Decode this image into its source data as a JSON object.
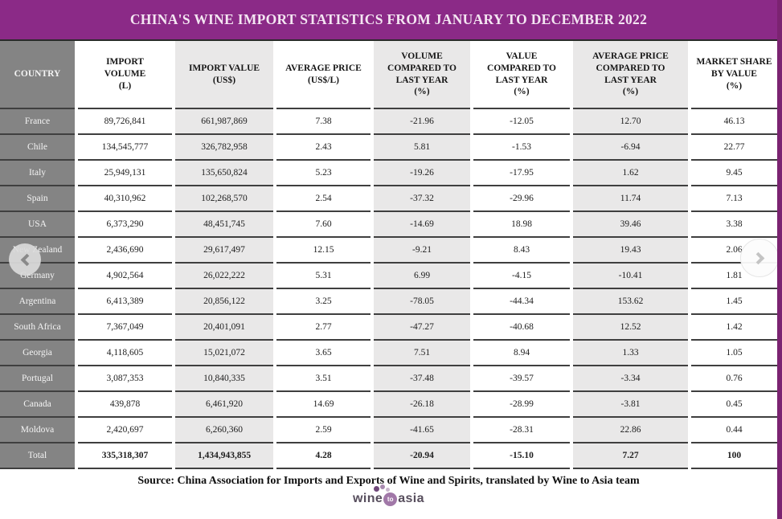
{
  "title": "CHINA'S WINE IMPORT STATISTICS FROM JANUARY TO DECEMBER 2022",
  "footer": {
    "source": "Source: China Association for Imports and Exports of Wine and Spirits, translated by Wine to Asia team"
  },
  "logo": {
    "word1": "wine",
    "word2": "to",
    "word3": "asia"
  },
  "carousel": {
    "prev": "previous-slide",
    "next": "next-slide"
  },
  "colors": {
    "accent": "#8b2a87",
    "strip": "#7b2371",
    "country_cell": "#848484",
    "shaded_column": "#e9e8e8",
    "row_line": "#3f3f3f",
    "logo_purple": "#a178a8",
    "logo_text": "#574e5d"
  },
  "chart_data": {
    "type": "table",
    "title": "CHINA'S WINE IMPORT STATISTICS FROM JANUARY TO DECEMBER 2022",
    "columns": [
      "COUNTRY",
      "IMPORT\nVOLUME\n(L)",
      "IMPORT VALUE\n(US$)",
      "AVERAGE PRICE\n(US$/L)",
      "VOLUME\nCOMPARED TO\nLAST YEAR\n(%)",
      "VALUE\nCOMPARED TO\nLAST YEAR\n(%)",
      "AVERAGE PRICE\nCOMPARED TO\nLAST YEAR\n(%)",
      "MARKET SHARE\nBY VALUE\n(%)"
    ],
    "rows": [
      {
        "country": "France",
        "values": [
          "89,726,841",
          "661,987,869",
          "7.38",
          "-21.96",
          "-12.05",
          "12.70",
          "46.13"
        ],
        "emphasis": false
      },
      {
        "country": "Chile",
        "values": [
          "134,545,777",
          "326,782,958",
          "2.43",
          "5.81",
          "-1.53",
          "-6.94",
          "22.77"
        ],
        "emphasis": false
      },
      {
        "country": "Italy",
        "values": [
          "25,949,131",
          "135,650,824",
          "5.23",
          "-19.26",
          "-17.95",
          "1.62",
          "9.45"
        ],
        "emphasis": false
      },
      {
        "country": "Spain",
        "values": [
          "40,310,962",
          "102,268,570",
          "2.54",
          "-37.32",
          "-29.96",
          "11.74",
          "7.13"
        ],
        "emphasis": false
      },
      {
        "country": "USA",
        "values": [
          "6,373,290",
          "48,451,745",
          "7.60",
          "-14.69",
          "18.98",
          "39.46",
          "3.38"
        ],
        "emphasis": false
      },
      {
        "country": "New Zealand",
        "values": [
          "2,436,690",
          "29,617,497",
          "12.15",
          "-9.21",
          "8.43",
          "19.43",
          "2.06"
        ],
        "emphasis": false
      },
      {
        "country": "Germany",
        "values": [
          "4,902,564",
          "26,022,222",
          "5.31",
          "6.99",
          "-4.15",
          "-10.41",
          "1.81"
        ],
        "emphasis": false
      },
      {
        "country": "Argentina",
        "values": [
          "6,413,389",
          "20,856,122",
          "3.25",
          "-78.05",
          "-44.34",
          "153.62",
          "1.45"
        ],
        "emphasis": false
      },
      {
        "country": "South Africa",
        "values": [
          "7,367,049",
          "20,401,091",
          "2.77",
          "-47.27",
          "-40.68",
          "12.52",
          "1.42"
        ],
        "emphasis": false
      },
      {
        "country": "Georgia",
        "values": [
          "4,118,605",
          "15,021,072",
          "3.65",
          "7.51",
          "8.94",
          "1.33",
          "1.05"
        ],
        "emphasis": false
      },
      {
        "country": "Portugal",
        "values": [
          "3,087,353",
          "10,840,335",
          "3.51",
          "-37.48",
          "-39.57",
          "-3.34",
          "0.76"
        ],
        "emphasis": false
      },
      {
        "country": "Canada",
        "values": [
          "439,878",
          "6,461,920",
          "14.69",
          "-26.18",
          "-28.99",
          "-3.81",
          "0.45"
        ],
        "emphasis": false
      },
      {
        "country": "Moldova",
        "values": [
          "2,420,697",
          "6,260,360",
          "2.59",
          "-41.65",
          "-28.31",
          "22.86",
          "0.44"
        ],
        "emphasis": false
      },
      {
        "country": "Total",
        "values": [
          "335,318,307",
          "1,434,943,855",
          "4.28",
          "-20.94",
          "-15.10",
          "7.27",
          "100"
        ],
        "emphasis": true
      }
    ],
    "source": "Source: China Association for Imports and Exports of Wine and Spirits, translated by Wine to Asia team",
    "layout": {
      "shaded_columns": [
        2,
        4,
        6
      ],
      "country_column_dark": true,
      "grid": "horizontal-lines-only"
    }
  }
}
